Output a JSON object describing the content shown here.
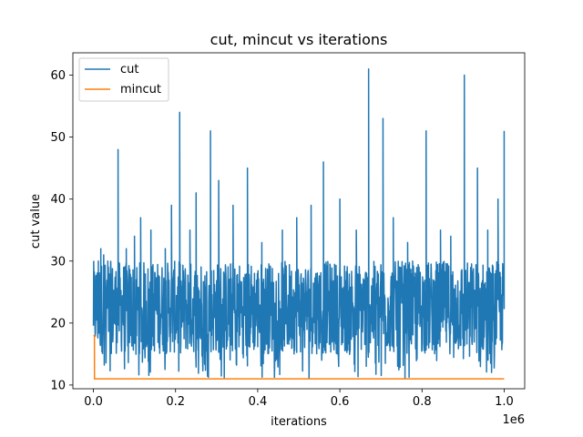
{
  "chart_data": {
    "type": "line",
    "title": "cut, mincut vs iterations",
    "xlabel": "iterations",
    "ylabel": "cut value",
    "x_offset_text": "1e6",
    "xlim": [
      -50000,
      1050000
    ],
    "ylim": [
      9.4,
      63.6
    ],
    "xticks": [
      0,
      200000,
      400000,
      600000,
      800000,
      1000000
    ],
    "xtick_labels": [
      "0.0",
      "0.2",
      "0.4",
      "0.6",
      "0.8",
      "1.0"
    ],
    "yticks": [
      10,
      20,
      30,
      40,
      50,
      60
    ],
    "ytick_labels": [
      "10",
      "20",
      "30",
      "40",
      "50",
      "60"
    ],
    "grid": false,
    "legend_position": "upper-left",
    "series": [
      {
        "name": "cut",
        "color": "#1f77b4",
        "x_start": 0,
        "x_end": 1000000,
        "typical_low": 15,
        "typical_high": 30,
        "spikes": [
          {
            "x": 6000,
            "y": 25
          },
          {
            "x": 12000,
            "y": 30
          },
          {
            "x": 18000,
            "y": 32
          },
          {
            "x": 25000,
            "y": 31
          },
          {
            "x": 35000,
            "y": 30
          },
          {
            "x": 60000,
            "y": 48
          },
          {
            "x": 80000,
            "y": 32
          },
          {
            "x": 100000,
            "y": 34
          },
          {
            "x": 115000,
            "y": 37
          },
          {
            "x": 140000,
            "y": 35
          },
          {
            "x": 175000,
            "y": 32
          },
          {
            "x": 190000,
            "y": 39
          },
          {
            "x": 210000,
            "y": 54
          },
          {
            "x": 235000,
            "y": 35
          },
          {
            "x": 250000,
            "y": 41
          },
          {
            "x": 285000,
            "y": 51
          },
          {
            "x": 305000,
            "y": 43
          },
          {
            "x": 340000,
            "y": 39
          },
          {
            "x": 375000,
            "y": 45
          },
          {
            "x": 410000,
            "y": 33
          },
          {
            "x": 460000,
            "y": 35
          },
          {
            "x": 495000,
            "y": 37
          },
          {
            "x": 530000,
            "y": 39
          },
          {
            "x": 560000,
            "y": 46
          },
          {
            "x": 600000,
            "y": 40
          },
          {
            "x": 640000,
            "y": 35
          },
          {
            "x": 670000,
            "y": 61
          },
          {
            "x": 705000,
            "y": 53
          },
          {
            "x": 730000,
            "y": 37
          },
          {
            "x": 765000,
            "y": 33
          },
          {
            "x": 810000,
            "y": 51
          },
          {
            "x": 845000,
            "y": 35
          },
          {
            "x": 870000,
            "y": 34
          },
          {
            "x": 903000,
            "y": 60
          },
          {
            "x": 935000,
            "y": 45
          },
          {
            "x": 960000,
            "y": 35
          },
          {
            "x": 985000,
            "y": 40
          },
          {
            "x": 1000000,
            "y": 51
          }
        ]
      },
      {
        "name": "mincut",
        "color": "#ff7f0e",
        "x": [
          0,
          2500,
          2600,
          1000000
        ],
        "y": [
          18,
          18,
          11,
          11
        ]
      }
    ]
  }
}
